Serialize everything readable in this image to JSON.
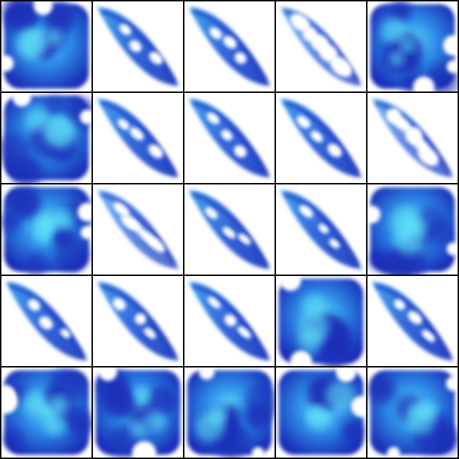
{
  "grid": {
    "rows": 5,
    "cols": 5,
    "palette": {
      "background": "#ffffff",
      "border": "#000000",
      "deep": "#1a2fb8",
      "mid": "#2f6fe0",
      "bright": "#3fb6f2",
      "cyan": "#5fe0f6"
    },
    "tiles": [
      "blob",
      "leaf",
      "leaf",
      "leaf-sparse",
      "blob-open",
      "blob",
      "leaf",
      "leaf",
      "leaf",
      "leaf-sparse",
      "blob",
      "leaf-sparse",
      "leaf",
      "leaf",
      "blob",
      "leaf",
      "leaf",
      "leaf",
      "blob",
      "leaf",
      "blob",
      "blob",
      "blob",
      "blob",
      "blob"
    ]
  }
}
